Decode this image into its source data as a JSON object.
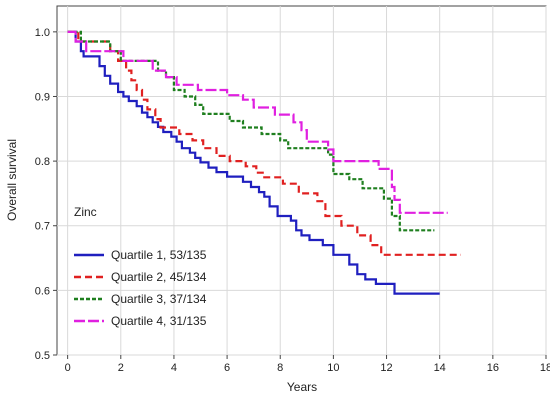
{
  "chart_data": {
    "type": "line",
    "step": true,
    "xlabel": "Years",
    "ylabel": "Overall survival",
    "xlim": [
      -0.4,
      18
    ],
    "ylim": [
      0.5,
      1.04
    ],
    "xticks": [
      "0",
      "2",
      "4",
      "6",
      "8",
      "10",
      "12",
      "14",
      "16",
      "18"
    ],
    "yticks": [
      "0.5",
      "0.6",
      "0.7",
      "0.8",
      "0.9",
      "1.0"
    ],
    "grid": true,
    "legend_title": "Zinc",
    "legend_position": "lower-left",
    "series": [
      {
        "name": "Quartile 1, 53/135",
        "color": "#1f1fbf",
        "dash": "solid",
        "points": [
          [
            0,
            1.0
          ],
          [
            0.3,
            0.985
          ],
          [
            0.5,
            0.97
          ],
          [
            0.6,
            0.962
          ],
          [
            1.2,
            0.947
          ],
          [
            1.4,
            0.932
          ],
          [
            1.6,
            0.92
          ],
          [
            1.9,
            0.907
          ],
          [
            2.1,
            0.9
          ],
          [
            2.3,
            0.893
          ],
          [
            2.6,
            0.885
          ],
          [
            2.8,
            0.875
          ],
          [
            3.0,
            0.868
          ],
          [
            3.2,
            0.86
          ],
          [
            3.4,
            0.853
          ],
          [
            3.6,
            0.845
          ],
          [
            3.9,
            0.838
          ],
          [
            4.1,
            0.83
          ],
          [
            4.3,
            0.82
          ],
          [
            4.6,
            0.813
          ],
          [
            4.8,
            0.805
          ],
          [
            5.0,
            0.798
          ],
          [
            5.3,
            0.79
          ],
          [
            5.6,
            0.783
          ],
          [
            6.0,
            0.776
          ],
          [
            6.6,
            0.768
          ],
          [
            6.9,
            0.76
          ],
          [
            7.2,
            0.752
          ],
          [
            7.4,
            0.745
          ],
          [
            7.6,
            0.73
          ],
          [
            7.9,
            0.715
          ],
          [
            8.4,
            0.708
          ],
          [
            8.6,
            0.693
          ],
          [
            8.8,
            0.685
          ],
          [
            9.1,
            0.678
          ],
          [
            9.6,
            0.67
          ],
          [
            10.0,
            0.655
          ],
          [
            10.6,
            0.64
          ],
          [
            10.9,
            0.625
          ],
          [
            11.2,
            0.617
          ],
          [
            11.6,
            0.61
          ],
          [
            12.3,
            0.595
          ],
          [
            14.0,
            0.595
          ]
        ]
      },
      {
        "name": "Quartile 2, 45/134",
        "color": "#e02020",
        "dash": "dashed",
        "points": [
          [
            0,
            1.0
          ],
          [
            0.4,
            0.985
          ],
          [
            1.6,
            0.97
          ],
          [
            1.9,
            0.955
          ],
          [
            2.2,
            0.94
          ],
          [
            2.4,
            0.925
          ],
          [
            2.6,
            0.91
          ],
          [
            2.8,
            0.895
          ],
          [
            3.0,
            0.88
          ],
          [
            3.3,
            0.865
          ],
          [
            3.5,
            0.852
          ],
          [
            4.2,
            0.842
          ],
          [
            4.7,
            0.832
          ],
          [
            5.1,
            0.82
          ],
          [
            5.6,
            0.808
          ],
          [
            6.1,
            0.8
          ],
          [
            6.7,
            0.792
          ],
          [
            7.1,
            0.782
          ],
          [
            7.4,
            0.775
          ],
          [
            8.1,
            0.765
          ],
          [
            8.7,
            0.75
          ],
          [
            9.4,
            0.738
          ],
          [
            9.7,
            0.715
          ],
          [
            10.3,
            0.7
          ],
          [
            10.9,
            0.685
          ],
          [
            11.4,
            0.67
          ],
          [
            11.8,
            0.655
          ],
          [
            14.8,
            0.655
          ]
        ]
      },
      {
        "name": "Quartile 3, 37/134",
        "color": "#1f7f1f",
        "dash": "dotted",
        "points": [
          [
            0,
            1.0
          ],
          [
            0.5,
            0.985
          ],
          [
            1.6,
            0.97
          ],
          [
            2.0,
            0.955
          ],
          [
            3.4,
            0.94
          ],
          [
            3.7,
            0.93
          ],
          [
            4.0,
            0.91
          ],
          [
            4.4,
            0.9
          ],
          [
            4.8,
            0.887
          ],
          [
            5.1,
            0.873
          ],
          [
            6.1,
            0.862
          ],
          [
            6.6,
            0.852
          ],
          [
            7.3,
            0.842
          ],
          [
            8.0,
            0.832
          ],
          [
            8.3,
            0.82
          ],
          [
            9.8,
            0.81
          ],
          [
            10.0,
            0.78
          ],
          [
            10.6,
            0.772
          ],
          [
            11.1,
            0.758
          ],
          [
            11.9,
            0.742
          ],
          [
            12.2,
            0.715
          ],
          [
            12.5,
            0.693
          ],
          [
            13.8,
            0.693
          ]
        ]
      },
      {
        "name": "Quartile 4, 31/135",
        "color": "#e020e0",
        "dash": "long-dash",
        "points": [
          [
            0,
            1.0
          ],
          [
            0.3,
            0.985
          ],
          [
            0.7,
            0.97
          ],
          [
            2.1,
            0.955
          ],
          [
            3.2,
            0.94
          ],
          [
            3.7,
            0.93
          ],
          [
            4.1,
            0.918
          ],
          [
            4.9,
            0.91
          ],
          [
            6.0,
            0.902
          ],
          [
            6.6,
            0.895
          ],
          [
            7.0,
            0.883
          ],
          [
            7.8,
            0.872
          ],
          [
            8.5,
            0.86
          ],
          [
            8.8,
            0.848
          ],
          [
            9.0,
            0.83
          ],
          [
            9.8,
            0.818
          ],
          [
            10.0,
            0.8
          ],
          [
            11.7,
            0.788
          ],
          [
            12.2,
            0.76
          ],
          [
            12.3,
            0.74
          ],
          [
            12.5,
            0.72
          ],
          [
            14.3,
            0.72
          ]
        ]
      }
    ]
  }
}
